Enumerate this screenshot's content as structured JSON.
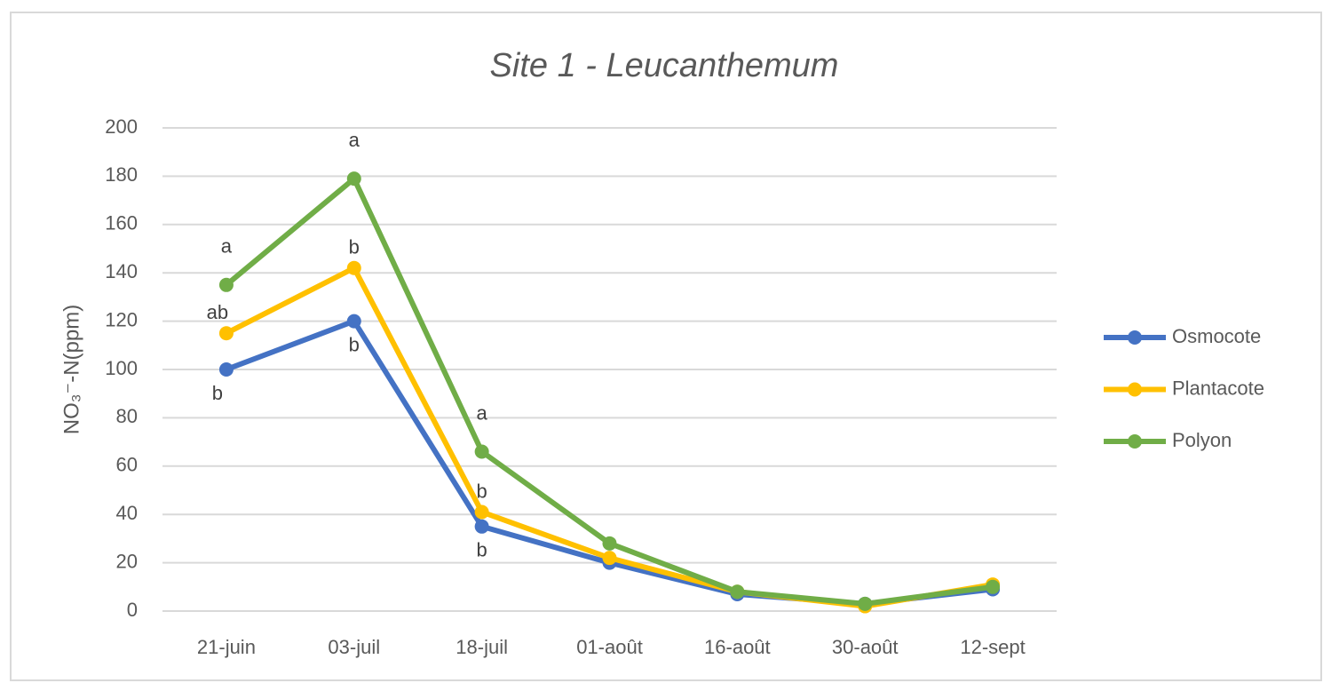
{
  "chart_data": {
    "type": "line",
    "title": "Site 1 - Leucanthemum",
    "y_label": "NO₃⁻-N(ppm)",
    "categories": [
      "21-juin",
      "03-juil",
      "18-juil",
      "01-août",
      "16-août",
      "30-août",
      "12-sept"
    ],
    "series": [
      {
        "name": "Osmocote",
        "color": "#4472c4",
        "values": [
          100,
          120,
          35,
          20,
          7,
          3,
          9
        ],
        "annotations": [
          "b",
          "b",
          "b",
          null,
          null,
          null,
          null
        ]
      },
      {
        "name": "Plantacote",
        "color": "#ffc000",
        "values": [
          115,
          142,
          41,
          22,
          8,
          2,
          11
        ],
        "annotations": [
          "ab",
          "b",
          "b",
          null,
          null,
          null,
          null
        ]
      },
      {
        "name": "Polyon",
        "color": "#70ad47",
        "values": [
          135,
          179,
          66,
          28,
          8,
          3,
          10
        ],
        "annotations": [
          "a",
          "a",
          "a",
          null,
          null,
          null,
          null
        ]
      }
    ],
    "ylim": [
      0,
      200
    ],
    "yticks": [
      0,
      20,
      40,
      60,
      80,
      100,
      120,
      140,
      160,
      180,
      200
    ],
    "grid": true,
    "legend": "right"
  }
}
